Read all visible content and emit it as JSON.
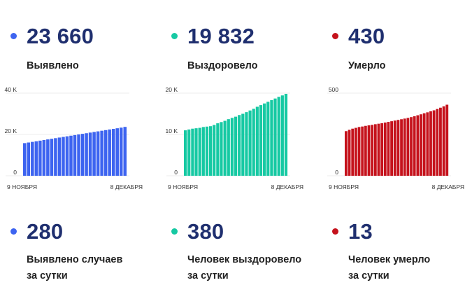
{
  "stats": [
    {
      "key": "detected",
      "value": "23 660",
      "label": "Выявлено",
      "color": "#3d64f0"
    },
    {
      "key": "recovered",
      "value": "19 832",
      "label": "Выздоровело",
      "color": "#16c9a3"
    },
    {
      "key": "died",
      "value": "430",
      "label": "Умерло",
      "color": "#c5121c"
    }
  ],
  "daily": [
    {
      "key": "detected_day",
      "value": "280",
      "label_line1": "Выявлено случаев",
      "label_line2": "за сутки",
      "color": "#3d64f0"
    },
    {
      "key": "recovered_day",
      "value": "380",
      "label_line1": "Человек выздоровело",
      "label_line2": "за сутки",
      "color": "#16c9a3"
    },
    {
      "key": "died_day",
      "value": "13",
      "label_line1": "Человек умерло",
      "label_line2": "за сутки",
      "color": "#c5121c"
    }
  ],
  "chart_data": [
    {
      "type": "bar",
      "x_start_label": "9 НОЯБРЯ",
      "x_end_label": "8 ДЕКАБРЯ",
      "y_ticks": [
        {
          "value": 0,
          "label": "0"
        },
        {
          "value": 20000,
          "label": "20 K"
        },
        {
          "value": 40000,
          "label": "40 K"
        }
      ],
      "ylim": [
        0,
        40000
      ],
      "color": "#3d64f0",
      "values": [
        15800,
        16100,
        16400,
        16700,
        17000,
        17300,
        17600,
        17900,
        18200,
        18500,
        18800,
        19100,
        19400,
        19700,
        20000,
        20300,
        20600,
        20900,
        21200,
        21500,
        21800,
        22100,
        22400,
        22700,
        23000,
        23300,
        23660
      ]
    },
    {
      "type": "bar",
      "x_start_label": "9 НОЯБРЯ",
      "x_end_label": "8 ДЕКАБРЯ",
      "y_ticks": [
        {
          "value": 0,
          "label": "0"
        },
        {
          "value": 10000,
          "label": "10 K"
        },
        {
          "value": 20000,
          "label": "20 K"
        }
      ],
      "ylim": [
        0,
        20000
      ],
      "color": "#16c9a3",
      "values": [
        11000,
        11200,
        11400,
        11500,
        11600,
        11800,
        11900,
        12000,
        12300,
        12700,
        13000,
        13300,
        13700,
        14000,
        14300,
        14700,
        15000,
        15400,
        15800,
        16200,
        16700,
        17100,
        17500,
        17900,
        18300,
        18700,
        19100,
        19450,
        19832
      ]
    },
    {
      "type": "bar",
      "x_start_label": "9 НОЯБРЯ",
      "x_end_label": "8 ДЕКАБРЯ",
      "y_ticks": [
        {
          "value": 0,
          "label": "0"
        },
        {
          "value": 500,
          "label": "500"
        }
      ],
      "ylim": [
        0,
        500
      ],
      "color": "#c5121c",
      "values": [
        270,
        278,
        285,
        290,
        295,
        298,
        302,
        305,
        308,
        312,
        315,
        318,
        322,
        326,
        330,
        334,
        338,
        342,
        346,
        350,
        355,
        360,
        366,
        372,
        378,
        384,
        390,
        396,
        404,
        412,
        420,
        430
      ]
    }
  ]
}
